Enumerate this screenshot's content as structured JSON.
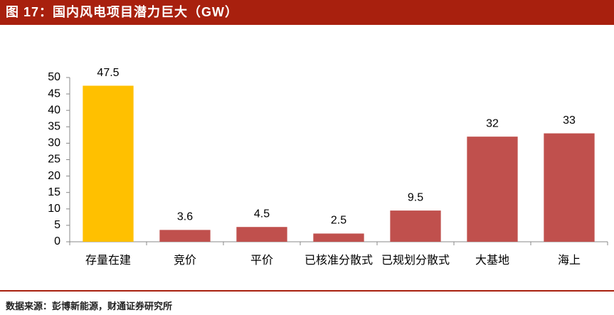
{
  "chart_data": {
    "type": "bar",
    "title": "图 17：国内风电项目潜力巨大（GW）",
    "source": "数据来源：彭博新能源，财通证券研究所",
    "categories": [
      "存量在建",
      "竞价",
      "平价",
      "已核准分散式",
      "已规划分散式",
      "大基地",
      "海上"
    ],
    "values": [
      47.5,
      3.6,
      4.5,
      2.5,
      9.5,
      32,
      33
    ],
    "colors": [
      "#FFC000",
      "#C0504D",
      "#C0504D",
      "#C0504D",
      "#C0504D",
      "#C0504D",
      "#C0504D"
    ],
    "ylim": [
      0,
      50
    ],
    "yticks": [
      0,
      5,
      10,
      15,
      20,
      25,
      30,
      35,
      40,
      45,
      50
    ],
    "grid": false
  }
}
